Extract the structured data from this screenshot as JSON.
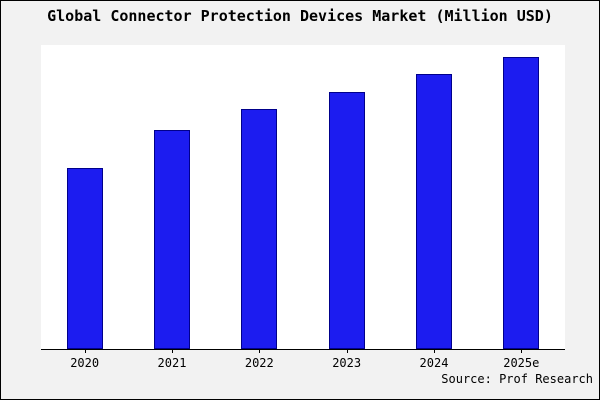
{
  "chart_data": {
    "type": "bar",
    "title": "Global Connector Protection Devices Market (Million USD)",
    "categories": [
      "2020",
      "2021",
      "2022",
      "2023",
      "2024",
      "2025e"
    ],
    "values": [
      62,
      75,
      82,
      88,
      94,
      100
    ],
    "ylim": [
      0,
      104
    ],
    "xlabel": "",
    "ylabel": "",
    "grid": false,
    "legend": false,
    "bar_fill": "#1c1cf0",
    "bar_border": "#00008b",
    "background": "#f2f2f2",
    "plot_background": "#ffffff"
  },
  "source": "Source: Prof Research"
}
